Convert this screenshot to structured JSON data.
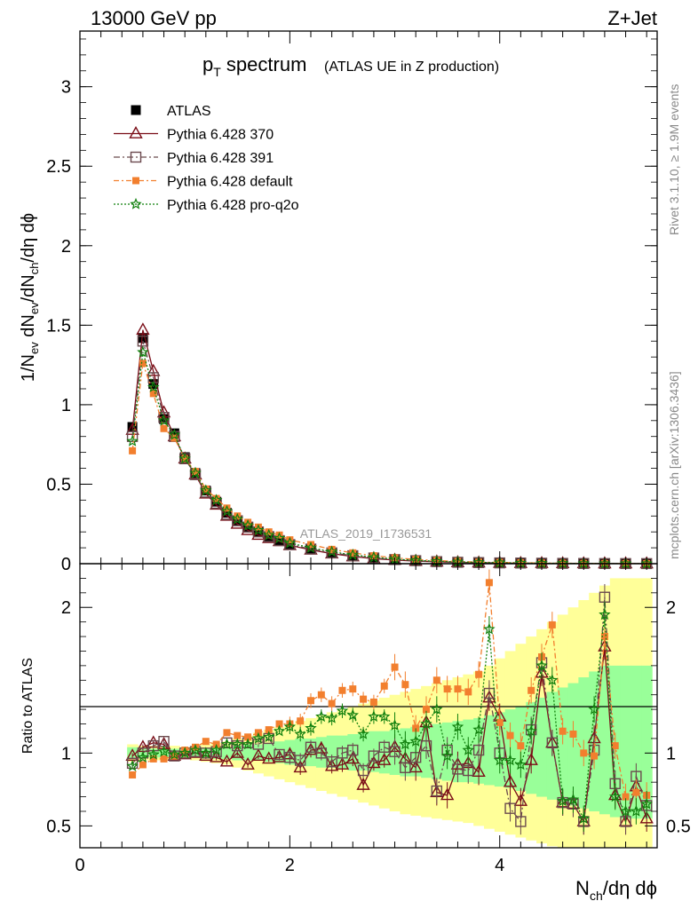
{
  "header": {
    "left": "13000 GeV pp",
    "right": "Z+Jet"
  },
  "side_text": {
    "rivet": "Rivet 3.1.10, ≥ 1.9M events",
    "mcplots": "mcplots.cern.ch [arXiv:1306.3436]"
  },
  "colors": {
    "atlas": "#000000",
    "p370": "#7a0d17",
    "p391": "#6b4a4e",
    "pdefault": "#f27f2e",
    "pq2o": "#11800e",
    "band_yellow": "#ffff99",
    "band_green": "#99ff99"
  },
  "chart_data": [
    {
      "type": "scatter",
      "title": "p_T spectrum",
      "subtitle": "(ATLAS UE in Z production)",
      "ylabel": "1/N_ev dN_ev/dN_ch/dη dϕ",
      "xlabel": "N_ch/dη dϕ",
      "watermark": "ATLAS_2019_I1736531",
      "xlim": [
        0,
        5.5
      ],
      "ylim": [
        0,
        3.35
      ],
      "yticks": [
        "0",
        "0.5",
        "1",
        "1.5",
        "2",
        "2.5",
        "3"
      ],
      "legend_position": "top-left",
      "x": [
        0.5,
        0.6,
        0.7,
        0.8,
        0.9,
        1.0,
        1.1,
        1.2,
        1.3,
        1.4,
        1.5,
        1.6,
        1.7,
        1.8,
        1.9,
        2.0,
        2.2,
        2.4,
        2.6,
        2.8,
        3.0,
        3.2,
        3.4,
        3.6,
        3.8,
        4.0,
        4.2,
        4.4,
        4.6,
        4.8,
        5.0,
        5.2,
        5.4
      ],
      "series": [
        {
          "name": "ATLAS",
          "marker": "square-filled",
          "values": [
            0.86,
            1.42,
            1.13,
            0.91,
            0.82,
            0.67,
            0.57,
            0.46,
            0.39,
            0.32,
            0.27,
            0.23,
            0.2,
            0.17,
            0.145,
            0.12,
            0.09,
            0.066,
            0.048,
            0.035,
            0.025,
            0.018,
            0.013,
            0.009,
            0.007,
            0.005,
            0.004,
            0.003,
            0.002,
            0.0015,
            0.001,
            0.0008,
            0.0006
          ]
        },
        {
          "name": "Pythia 6.428 370",
          "marker": "triangle-open",
          "values": [
            0.84,
            1.47,
            1.21,
            0.95,
            0.8,
            0.66,
            0.56,
            0.44,
            0.37,
            0.3,
            0.25,
            0.21,
            0.18,
            0.16,
            0.14,
            0.115,
            0.087,
            0.063,
            0.045,
            0.032,
            0.023,
            0.016,
            0.012,
            0.008,
            0.006,
            0.004,
            0.003,
            0.0025,
            0.0018,
            0.0012,
            0.0009,
            0.0007,
            0.0005
          ]
        },
        {
          "name": "Pythia 6.428 391",
          "marker": "square-open",
          "values": [
            0.8,
            1.4,
            1.17,
            0.92,
            0.8,
            0.66,
            0.56,
            0.45,
            0.38,
            0.31,
            0.27,
            0.23,
            0.2,
            0.17,
            0.145,
            0.12,
            0.092,
            0.068,
            0.05,
            0.036,
            0.026,
            0.019,
            0.013,
            0.009,
            0.007,
            0.005,
            0.004,
            0.003,
            0.002,
            0.0015,
            0.001,
            0.0008,
            0.0006
          ]
        },
        {
          "name": "Pythia 6.428 default",
          "marker": "square-filled-small",
          "values": [
            0.71,
            1.26,
            1.07,
            0.85,
            0.79,
            0.66,
            0.58,
            0.47,
            0.41,
            0.35,
            0.3,
            0.26,
            0.23,
            0.2,
            0.18,
            0.15,
            0.12,
            0.09,
            0.068,
            0.05,
            0.037,
            0.027,
            0.02,
            0.014,
            0.01,
            0.008,
            0.006,
            0.004,
            0.003,
            0.002,
            0.0015,
            0.001,
            0.0008
          ]
        },
        {
          "name": "Pythia 6.428 pro-q2o",
          "marker": "star-open",
          "values": [
            0.77,
            1.33,
            1.11,
            0.9,
            0.81,
            0.66,
            0.57,
            0.46,
            0.4,
            0.33,
            0.28,
            0.24,
            0.21,
            0.18,
            0.16,
            0.13,
            0.1,
            0.075,
            0.055,
            0.04,
            0.029,
            0.021,
            0.015,
            0.011,
            0.008,
            0.006,
            0.004,
            0.003,
            0.0022,
            0.0016,
            0.0011,
            0.0008,
            0.0006
          ]
        }
      ]
    },
    {
      "type": "scatter",
      "ylabel": "Ratio to ATLAS",
      "xlabel": "N_ch/dη dϕ",
      "xlim": [
        0,
        5.5
      ],
      "ylim": [
        0.35,
        2.3
      ],
      "xticks": [
        "0",
        "2",
        "4"
      ],
      "yticks": [
        "0.5",
        "1",
        "2"
      ],
      "reference_line": 1,
      "x": [
        0.5,
        0.6,
        0.7,
        0.8,
        0.9,
        1.0,
        1.1,
        1.2,
        1.3,
        1.4,
        1.5,
        1.6,
        1.7,
        1.8,
        1.9,
        2.0,
        2.1,
        2.2,
        2.3,
        2.4,
        2.5,
        2.6,
        2.7,
        2.8,
        2.9,
        3.0,
        3.1,
        3.2,
        3.3,
        3.4,
        3.5,
        3.6,
        3.7,
        3.8,
        3.9,
        4.0,
        4.1,
        4.2,
        4.3,
        4.4,
        4.5,
        4.6,
        4.7,
        4.8,
        4.9,
        5.0,
        5.1,
        5.2,
        5.3,
        5.4
      ],
      "band_green": {
        "low": [
          0.96,
          0.97,
          0.97,
          0.97,
          0.97,
          0.98,
          0.97,
          0.97,
          0.96,
          0.96,
          0.95,
          0.95,
          0.95,
          0.94,
          0.93,
          0.92,
          0.92,
          0.91,
          0.9,
          0.9,
          0.89,
          0.88,
          0.88,
          0.87,
          0.86,
          0.85,
          0.84,
          0.84,
          0.83,
          0.82,
          0.81,
          0.8,
          0.8,
          0.79,
          0.78,
          0.77,
          0.76,
          0.74,
          0.72,
          0.7,
          0.68,
          0.66,
          0.64,
          0.62,
          0.6,
          0.58,
          0.56,
          0.55,
          0.55,
          0.55
        ],
        "high": [
          1.04,
          1.03,
          1.03,
          1.03,
          1.03,
          1.02,
          1.03,
          1.03,
          1.04,
          1.04,
          1.05,
          1.06,
          1.06,
          1.07,
          1.08,
          1.09,
          1.1,
          1.1,
          1.11,
          1.12,
          1.12,
          1.13,
          1.14,
          1.15,
          1.15,
          1.16,
          1.17,
          1.18,
          1.19,
          1.2,
          1.21,
          1.22,
          1.23,
          1.24,
          1.26,
          1.28,
          1.3,
          1.32,
          1.35,
          1.38,
          1.42,
          1.45,
          1.48,
          1.52,
          1.56,
          1.6,
          1.6,
          1.6,
          1.6,
          1.6
        ]
      },
      "band_yellow": {
        "low": [
          0.94,
          0.95,
          0.95,
          0.95,
          0.95,
          0.96,
          0.95,
          0.94,
          0.93,
          0.92,
          0.9,
          0.88,
          0.86,
          0.84,
          0.82,
          0.8,
          0.78,
          0.76,
          0.74,
          0.72,
          0.7,
          0.68,
          0.66,
          0.64,
          0.62,
          0.6,
          0.58,
          0.57,
          0.56,
          0.55,
          0.54,
          0.53,
          0.52,
          0.5,
          0.48,
          0.46,
          0.44,
          0.42,
          0.4,
          0.38,
          0.36,
          0.35,
          0.35,
          0.35,
          0.35,
          0.35,
          0.35,
          0.35,
          0.35,
          0.35
        ],
        "high": [
          1.06,
          1.05,
          1.05,
          1.05,
          1.05,
          1.04,
          1.05,
          1.06,
          1.07,
          1.08,
          1.1,
          1.12,
          1.14,
          1.16,
          1.18,
          1.2,
          1.22,
          1.24,
          1.26,
          1.28,
          1.3,
          1.32,
          1.34,
          1.36,
          1.38,
          1.4,
          1.42,
          1.44,
          1.46,
          1.48,
          1.5,
          1.52,
          1.54,
          1.56,
          1.6,
          1.65,
          1.7,
          1.75,
          1.8,
          1.85,
          1.9,
          1.95,
          2.0,
          2.05,
          2.1,
          2.15,
          2.2,
          2.2,
          2.2,
          2.2
        ]
      },
      "series": [
        {
          "name": "Pythia 6.428 370",
          "values": [
            0.98,
            1.04,
            1.07,
            1.06,
            0.98,
            0.99,
            1.0,
            0.98,
            0.97,
            0.94,
            1.0,
            0.92,
            0.98,
            0.96,
            0.97,
            0.99,
            0.9,
            1.02,
            1.03,
            0.91,
            0.92,
            0.96,
            0.78,
            0.93,
            0.95,
            1.04,
            0.96,
            0.9,
            1.21,
            0.73,
            0.71,
            0.92,
            0.93,
            0.87,
            1.38,
            1.25,
            0.8,
            0.67,
            0.95,
            1.55,
            1.07,
            0.66,
            0.65,
            0.53,
            1.1,
            1.73,
            0.71,
            0.53,
            0.77,
            0.55
          ]
        },
        {
          "name": "Pythia 6.428 391",
          "values": [
            0.93,
            1.0,
            1.05,
            1.08,
            0.98,
            1.0,
            1.01,
            1.0,
            1.01,
            1.07,
            1.05,
            1.07,
            1.06,
            1.1,
            0.99,
            0.97,
            0.95,
            1.04,
            1.0,
            0.94,
            1.0,
            1.02,
            0.88,
            0.98,
            1.04,
            1.01,
            0.9,
            0.97,
            1.05,
            0.74,
            1.02,
            0.89,
            0.88,
            1.02,
            1.41,
            1.0,
            0.62,
            0.53,
            1.16,
            1.62,
            1.07,
            0.66,
            0.65,
            0.53,
            1.02,
            2.07,
            0.79,
            0.53,
            0.84,
            0.64
          ]
        },
        {
          "name": "Pythia 6.428 default",
          "values": [
            0.85,
            0.92,
            0.96,
            0.96,
            0.98,
            1.02,
            1.04,
            1.08,
            1.06,
            1.14,
            1.12,
            1.11,
            1.14,
            1.16,
            1.2,
            1.2,
            1.22,
            1.36,
            1.4,
            1.34,
            1.43,
            1.44,
            1.37,
            1.35,
            1.46,
            1.59,
            1.47,
            1.17,
            1.3,
            1.5,
            1.44,
            1.44,
            1.42,
            1.54,
            2.17,
            1.21,
            1.12,
            1.05,
            1.43,
            1.66,
            1.88,
            1.15,
            1.13,
            1.0,
            0.98,
            1.8,
            1.05,
            0.7,
            0.73,
            0.71
          ]
        },
        {
          "name": "Pythia 6.428 pro-q2o",
          "values": [
            0.91,
            0.97,
            0.99,
            1.01,
            0.99,
            1.0,
            1.02,
            1.0,
            1.02,
            1.06,
            1.06,
            1.06,
            1.1,
            1.11,
            1.15,
            1.18,
            1.13,
            1.17,
            1.25,
            1.24,
            1.29,
            1.26,
            1.13,
            1.25,
            1.25,
            1.19,
            1.06,
            1.08,
            1.2,
            1.3,
            0.98,
            1.18,
            1.02,
            1.16,
            1.85,
            0.95,
            0.95,
            0.92,
            1.15,
            1.6,
            1.5,
            0.67,
            0.68,
            0.55,
            1.3,
            1.95,
            0.7,
            0.6,
            0.6,
            0.65
          ]
        }
      ]
    }
  ]
}
